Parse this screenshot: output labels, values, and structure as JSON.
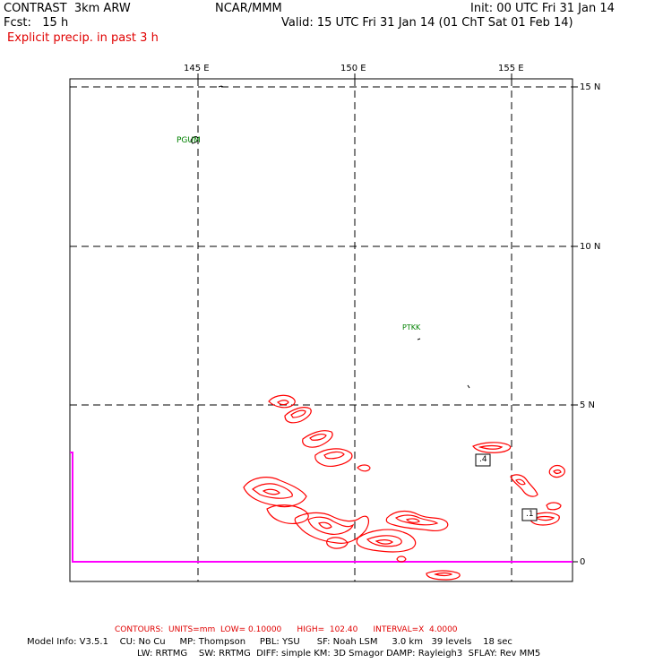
{
  "header": {
    "title_left": "CONTRAST  3km ARW",
    "title_center": "NCAR/MMM",
    "init": "Init: 00 UTC Fri 31 Jan 14",
    "fcst": "Fcst:   15 h",
    "valid": "Valid: 15 UTC Fri 31 Jan 14 (01 ChT Sat 01 Feb 14)",
    "field": "Explicit precip. in past 3 h"
  },
  "map": {
    "lon_labels": [
      "145 E",
      "150 E",
      "155 E"
    ],
    "lat_labels": [
      "15 N",
      "10 N",
      "5 N",
      "0"
    ],
    "stations": [
      "PGUM",
      "PTKK"
    ],
    "contour_labels": [
      ".4",
      ".1"
    ],
    "colors": {
      "contour": "#ff0000",
      "station": "#008000",
      "boundary": "#ff00ff"
    }
  },
  "footer": {
    "contours": "CONTOURS:  UNITS=mm  LOW= 0.10000      HIGH=  102.40      INTERVAL=X  4.0000",
    "model_line1": "Model Info: V3.5.1    CU: No Cu     MP: Thompson     PBL: YSU      SF: Noah LSM     3.0 km   39 levels    18 sec",
    "model_line2": "LW: RRTMG    SW: RRTMG  DIFF: simple KM: 3D Smagor DAMP: Rayleigh3  SFLAY: Rev MM5"
  }
}
